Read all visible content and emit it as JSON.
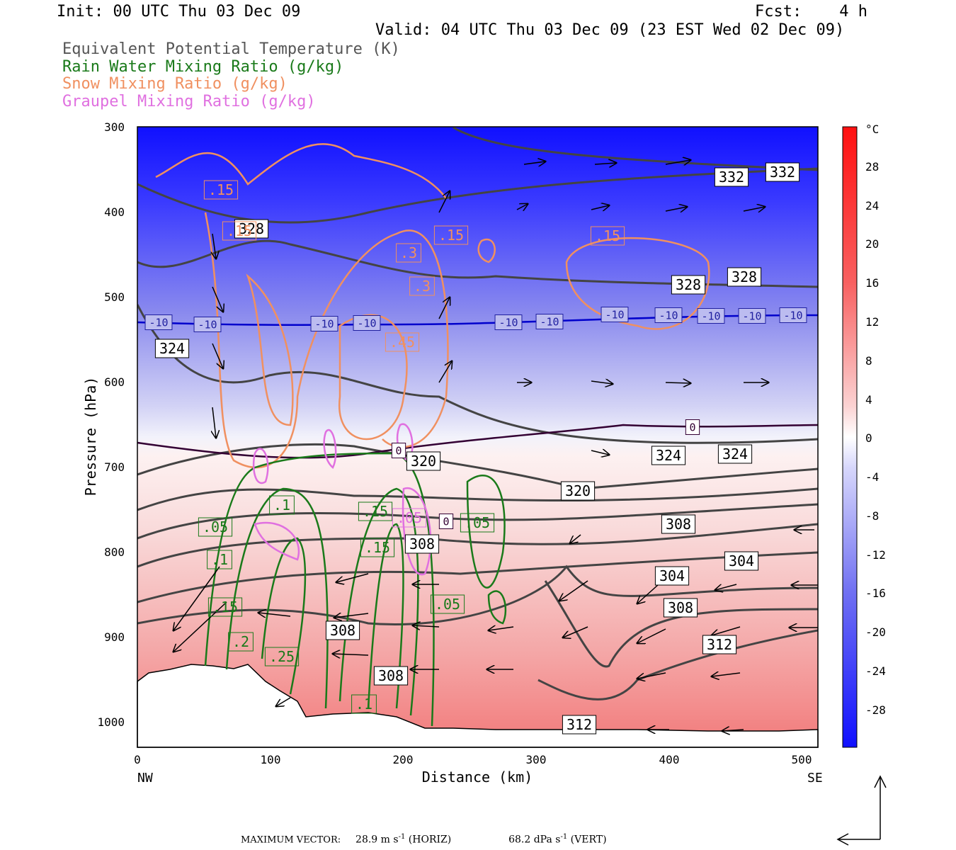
{
  "header": {
    "init": "Init: 00 UTC Thu 03 Dec 09",
    "fcst": "Fcst:    4 h",
    "valid": "Valid: 04 UTC Thu 03 Dec 09 (23 EST Wed 02 Dec 09)"
  },
  "legend": [
    {
      "label": "Equivalent Potential Temperature (K)",
      "color": "#555555"
    },
    {
      "label": "Rain Water Mixing Ratio (g/kg)",
      "color": "#1a7a1a"
    },
    {
      "label": "Snow Mixing Ratio (g/kg)",
      "color": "#f09060"
    },
    {
      "label": "Graupel Mixing Ratio (g/kg)",
      "color": "#e070e0"
    }
  ],
  "chart_data": {
    "type": "contour-cross-section",
    "ylabel": "Pressure (hPa)",
    "xlabel": "Distance (km)",
    "xlim": [
      0,
      512
    ],
    "ylim": [
      1030,
      300
    ],
    "xticks": [
      "0",
      "100",
      "200",
      "300",
      "400",
      "500"
    ],
    "yticks": [
      "300",
      "400",
      "500",
      "600",
      "700",
      "800",
      "900",
      "1000"
    ],
    "left_end_label": "NW",
    "right_end_label": "SE",
    "colorbar": {
      "unit": "°C",
      "range": [
        -32,
        32
      ],
      "ticks": [
        "28",
        "24",
        "20",
        "16",
        "12",
        "8",
        "4",
        "0",
        "-4",
        "-8",
        "-12",
        "-16",
        "-20",
        "-24",
        "-28"
      ]
    },
    "theta_e_labels": [
      "332",
      "332",
      "328",
      "328",
      "328",
      "324",
      "324",
      "324",
      "320",
      "320",
      "308",
      "304",
      "304",
      "308",
      "312",
      "308",
      "308",
      "308",
      "312"
    ],
    "isotherm_labels": [
      "-10",
      "-10",
      "-10",
      "-10",
      "-10",
      "-10",
      "-10",
      "-10",
      "-10",
      "-10",
      "-10",
      "0",
      "0",
      "0"
    ],
    "snow_labels": [
      ".15",
      ".15",
      ".15",
      ".15",
      ".3",
      ".3",
      ".45"
    ],
    "rain_labels": [
      ".05",
      ".1",
      ".15",
      ".2",
      ".25",
      ".1",
      ".15",
      ".15",
      ".05",
      ".05",
      ".1"
    ],
    "graupel_labels": [
      ".05"
    ]
  },
  "footer": {
    "prefix": "MAXIMUM VECTOR:",
    "horiz": "28.9 m s",
    "horiz_exp": "-1",
    "horiz_suffix": " (HORIZ)",
    "vert": "68.2 dPa s",
    "vert_exp": "-1",
    "vert_suffix": " (VERT)"
  }
}
